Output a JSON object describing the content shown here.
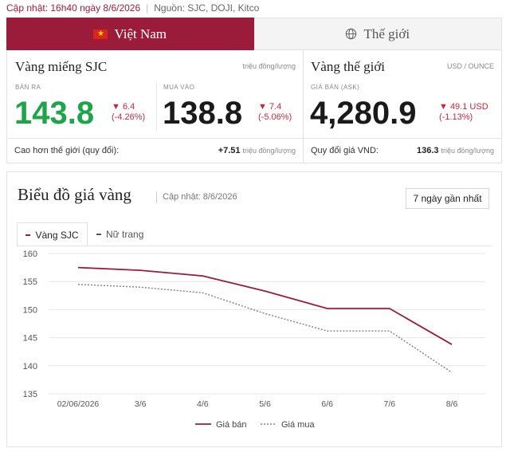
{
  "header": {
    "update_text": "Cập nhật: 16h40 ngày 8/6/2026",
    "source_text": "Nguồn: SJC, DOJI, Kitco"
  },
  "tabs": [
    {
      "label": "Việt Nam",
      "icon": "vietnam-flag-icon",
      "active": true
    },
    {
      "label": "Thế giới",
      "icon": "globe-icon",
      "active": false
    }
  ],
  "vn": {
    "title": "Vàng miếng SJC",
    "unit": "triệu đồng/lượng",
    "sell": {
      "label": "BÁN RA",
      "value": "143.8",
      "change": "▼ 6.4",
      "change_pct": "(-4.26%)"
    },
    "buy": {
      "label": "MUA VÀO",
      "value": "138.8",
      "change": "▼ 7.4",
      "change_pct": "(-5.06%)"
    },
    "footer_label": "Cao hơn thế giới (quy đổi):",
    "footer_value": "+7.51",
    "footer_unit": "triệu đồng/lượng"
  },
  "world": {
    "title": "Vàng thế giới",
    "unit": "USD / OUNCE",
    "ask": {
      "label": "GIÁ BÁN (ASK)",
      "value": "4,280.9",
      "change": "▼ 49.1 USD",
      "change_pct": "(-1.13%)"
    },
    "footer_label": "Quy đổi giá VND:",
    "footer_value": "136.3",
    "footer_unit": "triệu đồng/lượng"
  },
  "chart_section": {
    "title": "Biểu đồ giá vàng",
    "update": "Cập nhật: 8/6/2026",
    "range_button": "7 ngày gần nhất",
    "tabs": [
      {
        "label": "Vàng SJC",
        "active": true
      },
      {
        "label": "Nữ trang",
        "active": false
      }
    ]
  },
  "colors": {
    "brand": "#9b1c3a",
    "up_green": "#1ea54a",
    "down_red": "#c3293c",
    "sell_line": "#9b1c3a",
    "buy_line": "#7a7f99"
  },
  "chart_data": {
    "type": "line",
    "categories": [
      "02/06/2026",
      "3/6",
      "4/6",
      "5/6",
      "6/6",
      "7/6",
      "8/6"
    ],
    "series": [
      {
        "name": "Giá bán",
        "values": [
          157.5,
          157.0,
          156.0,
          153.3,
          150.2,
          150.2,
          143.8
        ],
        "style": "solid"
      },
      {
        "name": "Giá mua",
        "values": [
          154.5,
          154.0,
          153.0,
          149.3,
          146.2,
          146.2,
          138.8
        ],
        "style": "dotted"
      }
    ],
    "ylim": [
      135,
      160
    ],
    "yticks": [
      160,
      155,
      150,
      145,
      140,
      135
    ],
    "grid": true,
    "legend_position": "bottom"
  }
}
